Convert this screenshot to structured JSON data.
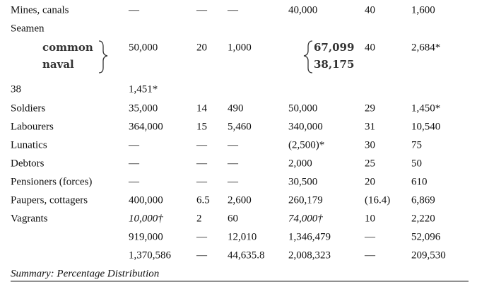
{
  "table": {
    "rows": [
      [
        "Mines, canals",
        "—",
        "—",
        "—",
        "40,000",
        "40",
        "1,600"
      ],
      [
        "Seamen",
        null,
        null,
        null,
        null,
        null,
        null
      ],
      [
        "38",
        "1,451*",
        null,
        null,
        null,
        null,
        null
      ],
      [
        "Soldiers",
        "35,000",
        "14",
        "490",
        "50,000",
        "29",
        "1,450*"
      ],
      [
        "Labourers",
        "364,000",
        "15",
        "5,460",
        "340,000",
        "31",
        "10,540"
      ],
      [
        "Lunatics",
        "—",
        "—",
        "—",
        "(2,500)*",
        "30",
        "75"
      ],
      [
        "Debtors",
        "—",
        "—",
        "—",
        "2,000",
        "25",
        "50"
      ],
      [
        "Pensioners (forces)",
        "—",
        "—",
        "—",
        "30,500",
        "20",
        "610"
      ],
      [
        "Paupers, cottagers",
        "400,000",
        "6.5",
        "2,600",
        "260,179",
        "(16.4)",
        "6,869"
      ],
      [
        "Vagrants",
        "10,000†",
        "2",
        "60",
        "74,000†",
        "10",
        "2,220"
      ],
      [
        null,
        "919,000",
        "—",
        "12,010",
        "1,346,479",
        "—",
        "52,096"
      ],
      [
        null,
        "1,370,586",
        "—",
        "44,635.8",
        "2,008,323",
        "—",
        "209,530"
      ]
    ],
    "seamen": {
      "labels": [
        "common",
        "naval"
      ],
      "col1": "50,000",
      "col2": "20",
      "col3": "1,000",
      "col4": [
        "67,099",
        "38,175"
      ],
      "col5": "40",
      "col6": "2,684*"
    },
    "summary": "Summary: Percentage Distribution"
  }
}
